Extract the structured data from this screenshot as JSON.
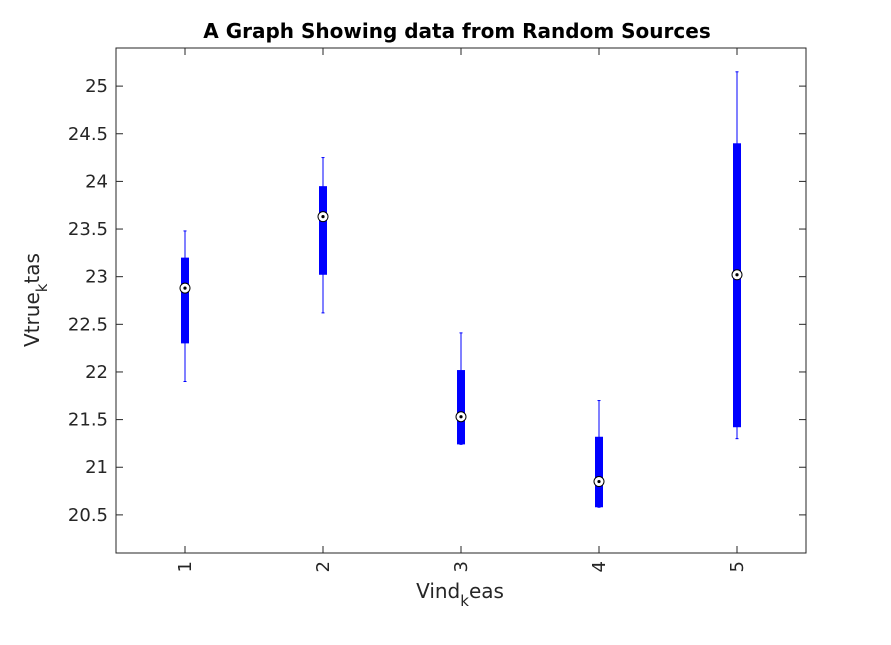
{
  "chart_data": {
    "type": "box",
    "title": "A Graph Showing data from Random Sources",
    "xlabel": {
      "main": "Vind",
      "sub": "k",
      "rest": "eas"
    },
    "ylabel": {
      "main": "Vtrue",
      "sub": "k",
      "rest": "tas"
    },
    "categories": [
      "1",
      "2",
      "3",
      "4",
      "5"
    ],
    "ylim": [
      20.1,
      25.4
    ],
    "yticks": [
      20.5,
      21,
      21.5,
      22,
      22.5,
      23,
      23.5,
      24,
      24.5,
      25
    ],
    "ytick_labels": [
      "20.5",
      "21",
      "21.5",
      "22",
      "22.5",
      "23",
      "23.5",
      "24",
      "24.5",
      "25"
    ],
    "grid": false,
    "box_color": "#0000ff",
    "boxes": [
      {
        "category": "1",
        "whisker_low": 21.9,
        "q1": 22.3,
        "median": 22.88,
        "q3": 23.2,
        "whisker_high": 23.48
      },
      {
        "category": "2",
        "whisker_low": 22.62,
        "q1": 23.02,
        "median": 23.63,
        "q3": 23.95,
        "whisker_high": 24.25
      },
      {
        "category": "3",
        "whisker_low": 21.24,
        "q1": 21.24,
        "median": 21.53,
        "q3": 22.02,
        "whisker_high": 22.41
      },
      {
        "category": "4",
        "whisker_low": 20.58,
        "q1": 20.58,
        "median": 20.85,
        "q3": 21.32,
        "whisker_high": 21.7
      },
      {
        "category": "5",
        "whisker_low": 21.3,
        "q1": 21.42,
        "median": 23.02,
        "q3": 24.4,
        "whisker_high": 25.15
      }
    ]
  }
}
